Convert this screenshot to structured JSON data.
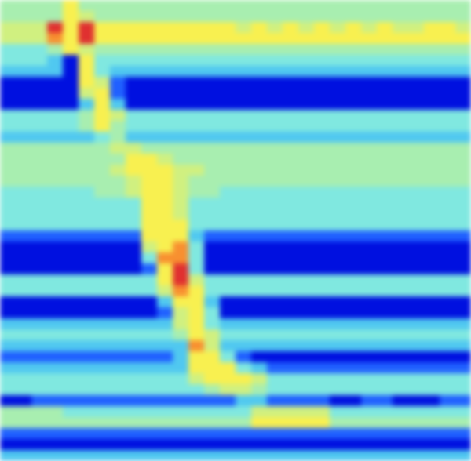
{
  "chart_data": {
    "type": "heatmap",
    "tick_labels": false,
    "xlim": [
      0,
      30
    ],
    "ylim": [
      0,
      42
    ],
    "zlim": [
      0,
      9
    ],
    "vlines": [
      0.5,
      15.6
    ],
    "values": [
      [
        5,
        5,
        5,
        5,
        7,
        5,
        5,
        5,
        5,
        5,
        5,
        5,
        5,
        5,
        5,
        5,
        5,
        5,
        5,
        5,
        5,
        5,
        5,
        5,
        5,
        5,
        5,
        5,
        5,
        5
      ],
      [
        5,
        5,
        5,
        5,
        7,
        6,
        5,
        5,
        5,
        5,
        5,
        5,
        5,
        5,
        5,
        5,
        5,
        5,
        5,
        5,
        5,
        5,
        5,
        5,
        5,
        5,
        5,
        5,
        5,
        5
      ],
      [
        6,
        6,
        6,
        9,
        7,
        9,
        7,
        7,
        7,
        7,
        7,
        7,
        7,
        7,
        7,
        6,
        7,
        6,
        7,
        6,
        7,
        6,
        7,
        6,
        7,
        6,
        6,
        7,
        7,
        6
      ],
      [
        6,
        6,
        6,
        8,
        7,
        9,
        7,
        7,
        7,
        7,
        7,
        7,
        7,
        7,
        7,
        7,
        7,
        7,
        7,
        7,
        7,
        7,
        7,
        7,
        7,
        7,
        7,
        7,
        7,
        7
      ],
      [
        4,
        4,
        4,
        5,
        7,
        6,
        5,
        5,
        5,
        5,
        5,
        5,
        5,
        5,
        5,
        5,
        5,
        5,
        5,
        5,
        5,
        5,
        5,
        5,
        5,
        5,
        5,
        5,
        5,
        5
      ],
      [
        4,
        4,
        4,
        3,
        1,
        7,
        4,
        4,
        4,
        4,
        4,
        4,
        4,
        4,
        4,
        4,
        4,
        4,
        4,
        4,
        4,
        4,
        4,
        4,
        4,
        4,
        4,
        4,
        4,
        4
      ],
      [
        3,
        3,
        3,
        3,
        1,
        7,
        4,
        3,
        3,
        3,
        3,
        3,
        3,
        3,
        3,
        3,
        3,
        3,
        3,
        3,
        3,
        3,
        3,
        3,
        3,
        3,
        3,
        3,
        3,
        3
      ],
      [
        1,
        1,
        1,
        1,
        1,
        7,
        6,
        2,
        1,
        1,
        1,
        1,
        1,
        1,
        1,
        1,
        1,
        1,
        1,
        1,
        1,
        1,
        1,
        1,
        1,
        1,
        1,
        1,
        1,
        1
      ],
      [
        1,
        1,
        1,
        1,
        1,
        6,
        7,
        2,
        1,
        1,
        1,
        1,
        1,
        1,
        1,
        1,
        1,
        1,
        1,
        1,
        1,
        1,
        1,
        1,
        1,
        1,
        1,
        1,
        1,
        1
      ],
      [
        1,
        1,
        1,
        1,
        1,
        3,
        7,
        3,
        1,
        1,
        1,
        1,
        1,
        1,
        1,
        1,
        1,
        1,
        1,
        1,
        1,
        1,
        1,
        1,
        1,
        1,
        1,
        1,
        1,
        1
      ],
      [
        4,
        4,
        4,
        4,
        4,
        5,
        7,
        6,
        4,
        4,
        4,
        4,
        4,
        4,
        4,
        4,
        4,
        4,
        4,
        4,
        4,
        4,
        4,
        4,
        4,
        4,
        4,
        4,
        4,
        4
      ],
      [
        4,
        4,
        4,
        4,
        4,
        5,
        7,
        5,
        4,
        4,
        4,
        4,
        4,
        4,
        4,
        4,
        4,
        4,
        4,
        4,
        4,
        4,
        4,
        4,
        4,
        4,
        4,
        4,
        4,
        4
      ],
      [
        3,
        3,
        3,
        3,
        3,
        3,
        4,
        5,
        3,
        3,
        3,
        3,
        3,
        3,
        3,
        3,
        3,
        3,
        3,
        3,
        3,
        3,
        3,
        3,
        3,
        3,
        3,
        3,
        3,
        3
      ],
      [
        5,
        5,
        5,
        5,
        5,
        5,
        5,
        6,
        6,
        5,
        5,
        5,
        5,
        5,
        5,
        5,
        5,
        5,
        5,
        5,
        5,
        5,
        5,
        5,
        5,
        5,
        5,
        5,
        5,
        5
      ],
      [
        5,
        5,
        5,
        5,
        5,
        5,
        5,
        5,
        7,
        7,
        6,
        5,
        5,
        5,
        5,
        5,
        5,
        5,
        5,
        5,
        5,
        5,
        5,
        5,
        5,
        5,
        5,
        5,
        5,
        5
      ],
      [
        5,
        5,
        5,
        5,
        5,
        5,
        5,
        6,
        7,
        7,
        7,
        6,
        6,
        5,
        5,
        5,
        5,
        5,
        5,
        5,
        5,
        5,
        5,
        5,
        5,
        5,
        5,
        5,
        5,
        5
      ],
      [
        5,
        5,
        5,
        5,
        5,
        5,
        5,
        5,
        6,
        7,
        7,
        6,
        5,
        5,
        5,
        5,
        5,
        5,
        5,
        5,
        5,
        5,
        5,
        5,
        5,
        5,
        5,
        5,
        5,
        5
      ],
      [
        4,
        4,
        4,
        4,
        4,
        4,
        5,
        5,
        6,
        7,
        7,
        6,
        5,
        5,
        4,
        4,
        4,
        4,
        4,
        4,
        4,
        4,
        4,
        4,
        4,
        4,
        4,
        4,
        4,
        4
      ],
      [
        4,
        4,
        4,
        4,
        4,
        4,
        4,
        4,
        4,
        7,
        7,
        6,
        4,
        4,
        4,
        4,
        4,
        4,
        4,
        4,
        4,
        4,
        4,
        4,
        4,
        4,
        4,
        4,
        4,
        4
      ],
      [
        4,
        4,
        4,
        4,
        4,
        4,
        4,
        4,
        4,
        7,
        7,
        6,
        4,
        4,
        4,
        4,
        4,
        4,
        4,
        4,
        4,
        4,
        4,
        4,
        4,
        4,
        4,
        4,
        4,
        4
      ],
      [
        4,
        4,
        4,
        4,
        4,
        4,
        4,
        4,
        4,
        7,
        7,
        7,
        4,
        4,
        4,
        4,
        4,
        4,
        4,
        4,
        4,
        4,
        4,
        4,
        4,
        4,
        4,
        4,
        4,
        4
      ],
      [
        2,
        2,
        2,
        2,
        2,
        2,
        2,
        2,
        2,
        7,
        7,
        7,
        3,
        2,
        2,
        2,
        2,
        2,
        2,
        2,
        2,
        2,
        2,
        2,
        2,
        2,
        2,
        2,
        2,
        2
      ],
      [
        1,
        1,
        1,
        1,
        1,
        1,
        1,
        1,
        1,
        6,
        7,
        8,
        4,
        1,
        1,
        1,
        1,
        1,
        1,
        1,
        1,
        1,
        1,
        1,
        1,
        1,
        1,
        1,
        1,
        1
      ],
      [
        1,
        1,
        1,
        1,
        1,
        1,
        1,
        1,
        1,
        4,
        8,
        8,
        4,
        1,
        1,
        1,
        1,
        1,
        1,
        1,
        1,
        1,
        1,
        1,
        1,
        1,
        1,
        1,
        1,
        1
      ],
      [
        1,
        1,
        1,
        1,
        1,
        1,
        1,
        1,
        1,
        2,
        7,
        9,
        4,
        1,
        1,
        1,
        1,
        1,
        1,
        1,
        1,
        1,
        1,
        1,
        1,
        1,
        1,
        1,
        1,
        1
      ],
      [
        4,
        4,
        4,
        4,
        4,
        4,
        4,
        4,
        4,
        4,
        7,
        9,
        6,
        4,
        4,
        4,
        4,
        4,
        4,
        4,
        4,
        4,
        4,
        4,
        4,
        4,
        4,
        4,
        4,
        4
      ],
      [
        4,
        4,
        4,
        4,
        4,
        4,
        4,
        4,
        4,
        4,
        6,
        8,
        7,
        4,
        4,
        4,
        4,
        4,
        4,
        4,
        4,
        4,
        4,
        4,
        4,
        4,
        4,
        4,
        4,
        4
      ],
      [
        1,
        1,
        1,
        1,
        1,
        1,
        1,
        1,
        1,
        1,
        3,
        7,
        7,
        3,
        1,
        1,
        1,
        1,
        1,
        1,
        1,
        1,
        1,
        1,
        1,
        1,
        1,
        1,
        1,
        1
      ],
      [
        1,
        1,
        1,
        1,
        1,
        1,
        1,
        1,
        1,
        1,
        2,
        6,
        7,
        4,
        1,
        1,
        1,
        1,
        1,
        1,
        1,
        1,
        1,
        1,
        1,
        1,
        1,
        1,
        1,
        1
      ],
      [
        3,
        3,
        3,
        3,
        3,
        3,
        3,
        3,
        3,
        3,
        3,
        6,
        7,
        4,
        3,
        3,
        3,
        3,
        3,
        3,
        3,
        3,
        3,
        3,
        3,
        3,
        3,
        3,
        3,
        3
      ],
      [
        4,
        4,
        4,
        4,
        4,
        4,
        4,
        4,
        4,
        4,
        4,
        5,
        7,
        6,
        4,
        4,
        4,
        4,
        4,
        4,
        4,
        4,
        4,
        4,
        4,
        4,
        4,
        4,
        4,
        4
      ],
      [
        3,
        3,
        3,
        3,
        3,
        3,
        3,
        3,
        3,
        3,
        3,
        3,
        8,
        6,
        3,
        3,
        3,
        3,
        3,
        3,
        3,
        3,
        3,
        3,
        3,
        3,
        3,
        3,
        3,
        3
      ],
      [
        2,
        2,
        2,
        2,
        2,
        2,
        2,
        2,
        2,
        2,
        2,
        3,
        7,
        7,
        4,
        2,
        1,
        1,
        1,
        1,
        1,
        1,
        1,
        1,
        1,
        1,
        1,
        1,
        1,
        1
      ],
      [
        3,
        3,
        3,
        3,
        3,
        3,
        3,
        3,
        3,
        3,
        3,
        3,
        7,
        7,
        7,
        4,
        3,
        2,
        2,
        2,
        2,
        2,
        2,
        2,
        2,
        2,
        2,
        2,
        2,
        2
      ],
      [
        4,
        4,
        4,
        4,
        4,
        4,
        4,
        4,
        4,
        4,
        4,
        4,
        6,
        7,
        7,
        7,
        6,
        4,
        4,
        4,
        4,
        4,
        4,
        4,
        4,
        4,
        4,
        4,
        4,
        4
      ],
      [
        4,
        4,
        4,
        4,
        4,
        4,
        4,
        4,
        4,
        4,
        4,
        4,
        4,
        5,
        6,
        6,
        5,
        4,
        4,
        4,
        4,
        4,
        4,
        4,
        4,
        4,
        4,
        4,
        4,
        4
      ],
      [
        1,
        1,
        2,
        2,
        2,
        2,
        2,
        2,
        2,
        2,
        2,
        2,
        2,
        2,
        2,
        3,
        3,
        2,
        2,
        2,
        2,
        1,
        1,
        2,
        2,
        1,
        1,
        1,
        2,
        2
      ],
      [
        5,
        5,
        5,
        5,
        4,
        4,
        4,
        4,
        4,
        4,
        4,
        4,
        4,
        4,
        4,
        4,
        6,
        6,
        6,
        6,
        6,
        4,
        4,
        4,
        4,
        4,
        4,
        4,
        4,
        4
      ],
      [
        5,
        5,
        5,
        5,
        5,
        5,
        5,
        5,
        5,
        5,
        5,
        5,
        5,
        5,
        5,
        5,
        7,
        7,
        7,
        7,
        7,
        5,
        5,
        5,
        5,
        5,
        5,
        5,
        5,
        5
      ],
      [
        2,
        2,
        2,
        2,
        2,
        2,
        2,
        2,
        2,
        2,
        2,
        2,
        2,
        2,
        2,
        2,
        2,
        2,
        2,
        2,
        2,
        2,
        2,
        2,
        2,
        2,
        2,
        2,
        2,
        2
      ],
      [
        1,
        1,
        1,
        1,
        1,
        1,
        1,
        1,
        1,
        1,
        1,
        1,
        1,
        1,
        1,
        1,
        1,
        1,
        1,
        1,
        1,
        1,
        1,
        1,
        1,
        1,
        1,
        1,
        1,
        1
      ],
      [
        3,
        3,
        3,
        3,
        3,
        3,
        3,
        3,
        3,
        3,
        3,
        3,
        3,
        3,
        3,
        3,
        3,
        3,
        3,
        3,
        3,
        3,
        3,
        3,
        3,
        3,
        3,
        3,
        3,
        3
      ]
    ]
  }
}
